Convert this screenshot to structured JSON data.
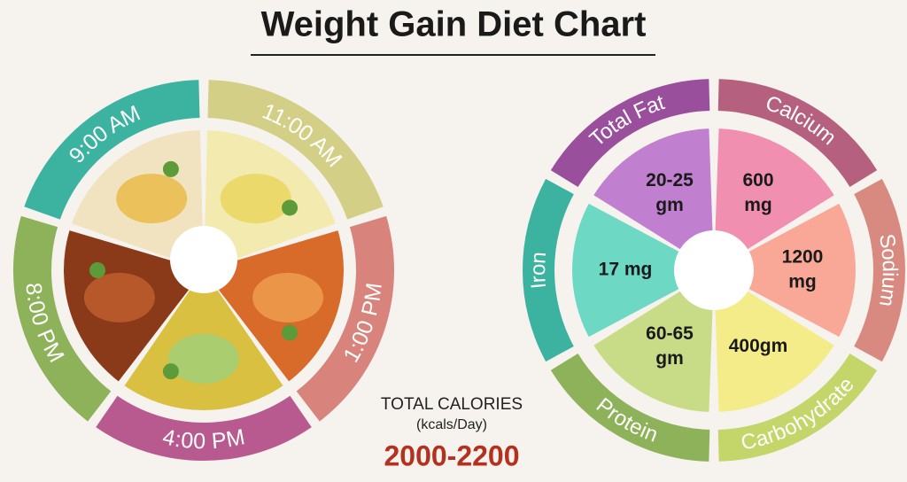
{
  "title": "Weight Gain Diet Chart",
  "meal_times": [
    "9:00 AM",
    "11:00 AM",
    "1:00 PM",
    "4:00 PM",
    "8:00 PM"
  ],
  "nutrients": [
    {
      "name": "Total Fat",
      "amount": [
        "20-25",
        "gm"
      ]
    },
    {
      "name": "Calcium",
      "amount": [
        "600",
        "mg"
      ]
    },
    {
      "name": "Sodium",
      "amount": [
        "1200",
        "mg"
      ]
    },
    {
      "name": "Carbohydrate",
      "amount": [
        "400gm"
      ]
    },
    {
      "name": "Protein",
      "amount": [
        "60-65",
        "gm"
      ]
    },
    {
      "name": "Iron",
      "amount": [
        "17 mg"
      ]
    }
  ],
  "total_calories": {
    "label": "TOTAL CALORIES",
    "unit": "(kcals/Day)",
    "value": "2000-2200"
  }
}
